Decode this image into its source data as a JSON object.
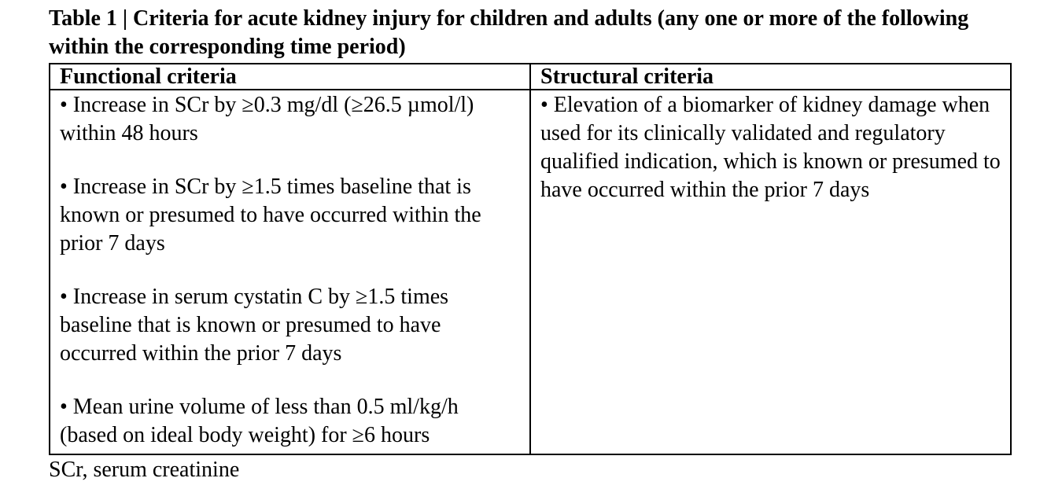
{
  "page": {
    "title": "Table 1 | Criteria for acute kidney injury for children and adults (any one or more of the following within the corresponding time period)",
    "footnote": "SCr, serum creatinine"
  },
  "table": {
    "columns": [
      {
        "header": "Functional criteria",
        "items": [
          "• Increase in SCr by ≥0.3 mg/dl (≥26.5 µmol/l) within 48 hours",
          "• Increase in SCr by ≥1.5 times baseline that is known or presumed to have occurred within the prior 7 days",
          "• Increase in serum cystatin C by ≥1.5 times baseline that is known or presumed to have occurred within the prior 7 days",
          "• Mean urine volume of less than 0.5 ml/kg/h (based on ideal body weight) for ≥6 hours"
        ]
      },
      {
        "header": "Structural criteria",
        "items": [
          "• Elevation of a biomarker of kidney damage when used for its clinically validated and regulatory qualified indication, which is known or presumed to have occurred within the prior 7 days"
        ]
      }
    ]
  }
}
